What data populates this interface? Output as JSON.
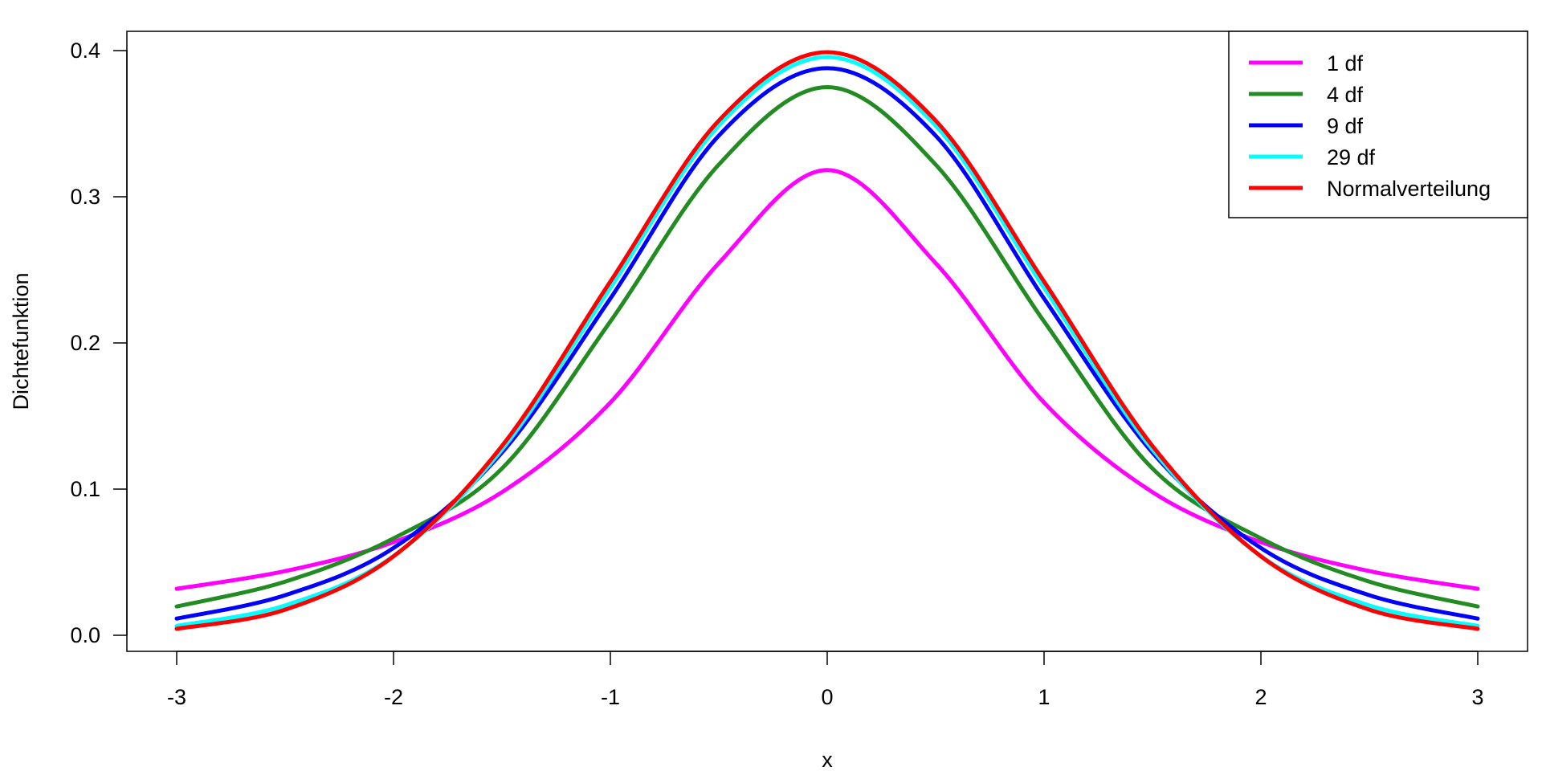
{
  "chart_data": {
    "type": "line",
    "title": "",
    "xlabel": "x",
    "ylabel": "Dichtefunktion",
    "xlim": [
      -3,
      3
    ],
    "ylim": [
      0,
      0.4
    ],
    "x_ticks": [
      "-3",
      "-2",
      "-1",
      "0",
      "1",
      "2",
      "3"
    ],
    "y_ticks": [
      "0.0",
      "0.1",
      "0.2",
      "0.3",
      "0.4"
    ],
    "grid": false,
    "legend_position": "top-right",
    "x": [
      -3,
      -2.5,
      -2,
      -1.5,
      -1,
      -0.5,
      0,
      0.5,
      1,
      1.5,
      2,
      2.5,
      3
    ],
    "series": [
      {
        "name": "1 df",
        "color": "#ff00ff",
        "values": [
          0.0318,
          0.0439,
          0.0637,
          0.0979,
          0.1592,
          0.2546,
          0.3183,
          0.2546,
          0.1592,
          0.0979,
          0.0637,
          0.0439,
          0.0318
        ]
      },
      {
        "name": "4 df",
        "color": "#228b22",
        "values": [
          0.0197,
          0.0367,
          0.0663,
          0.1141,
          0.2147,
          0.322,
          0.375,
          0.322,
          0.2147,
          0.1141,
          0.0663,
          0.0367,
          0.0197
        ]
      },
      {
        "name": "9 df",
        "color": "#0000ff",
        "values": [
          0.0114,
          0.0274,
          0.0597,
          0.125,
          0.2304,
          0.3418,
          0.388,
          0.3418,
          0.2304,
          0.125,
          0.0597,
          0.0274,
          0.0114
        ]
      },
      {
        "name": "29 df",
        "color": "#00ffff",
        "values": [
          0.0064,
          0.0204,
          0.0542,
          0.127,
          0.2377,
          0.3487,
          0.3956,
          0.3487,
          0.2377,
          0.127,
          0.0542,
          0.0204,
          0.0064
        ]
      },
      {
        "name": "Normalverteilung",
        "color": "#ff0000",
        "values": [
          0.0044,
          0.0175,
          0.054,
          0.1295,
          0.242,
          0.3521,
          0.3989,
          0.3521,
          0.242,
          0.1295,
          0.054,
          0.0175,
          0.0044
        ]
      }
    ]
  }
}
